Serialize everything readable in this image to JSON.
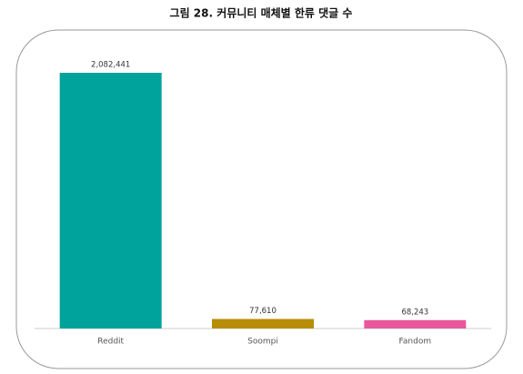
{
  "chart_data": {
    "type": "bar",
    "title": "그림 28. 커뮤니티 매체별 한류 댓글 수",
    "categories": [
      "Reddit",
      "Soompi",
      "Fandom"
    ],
    "values": [
      2082441,
      77610,
      68243
    ],
    "value_labels": [
      "2,082,441",
      "77,610",
      "68,243"
    ],
    "colors": [
      "#00a39b",
      "#b88d0a",
      "#e8589b"
    ],
    "grid": false
  }
}
